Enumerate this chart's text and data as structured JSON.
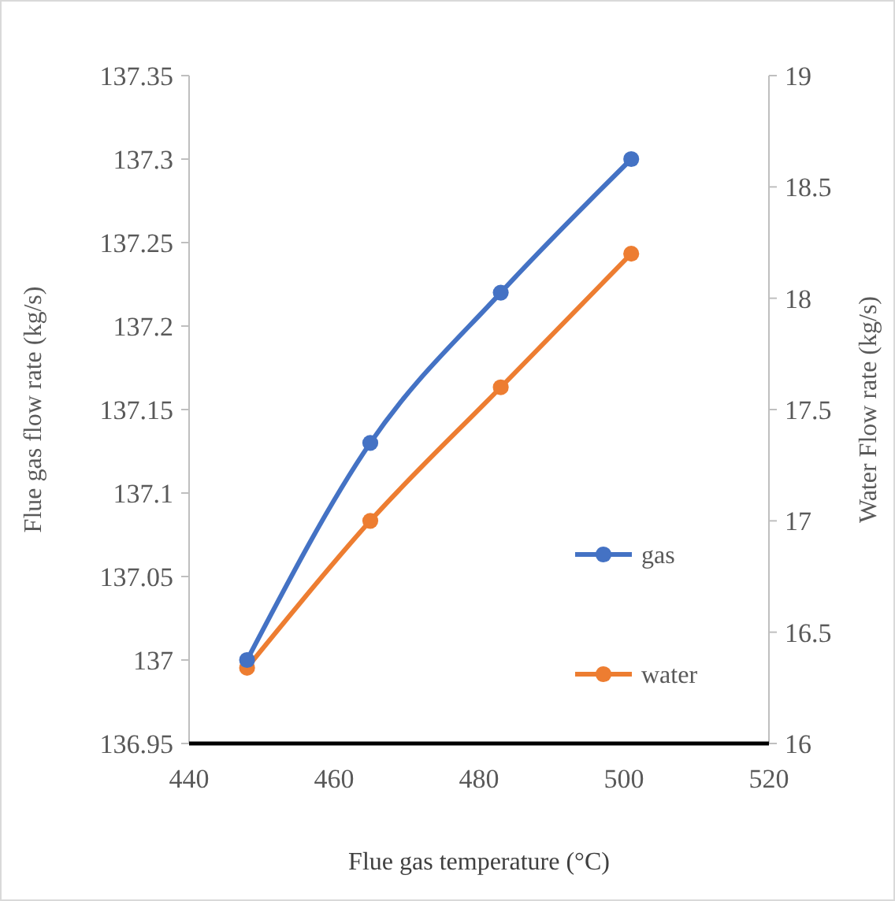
{
  "chart_data": {
    "type": "line",
    "xlabel": "Flue gas temperature (°C)",
    "ylabel": "Flue gas flow rate (kg/s)",
    "y2label": "Water Flow rate (kg/s)",
    "x": [
      448,
      465,
      483,
      501
    ],
    "series": [
      {
        "name": "gas",
        "color": "#4472c4",
        "values": [
          137.0,
          137.13,
          137.22,
          137.3
        ]
      },
      {
        "name": "water",
        "color": "#ed7d31",
        "values": [
          16.34,
          17.0,
          17.6,
          18.2
        ],
        "axis": "y2"
      }
    ],
    "xlim": [
      440,
      520
    ],
    "xticks": [
      440,
      460,
      480,
      500,
      520
    ],
    "ylim": [
      136.95,
      137.35
    ],
    "yticks": [
      136.95,
      137,
      137.05,
      137.1,
      137.15,
      137.2,
      137.25,
      137.3,
      137.35
    ],
    "y2lim": [
      16,
      19
    ],
    "y2ticks": [
      16,
      16.5,
      17,
      17.5,
      18,
      18.5,
      19
    ],
    "marker": "circle",
    "legend": "bottom right",
    "grid": false
  }
}
